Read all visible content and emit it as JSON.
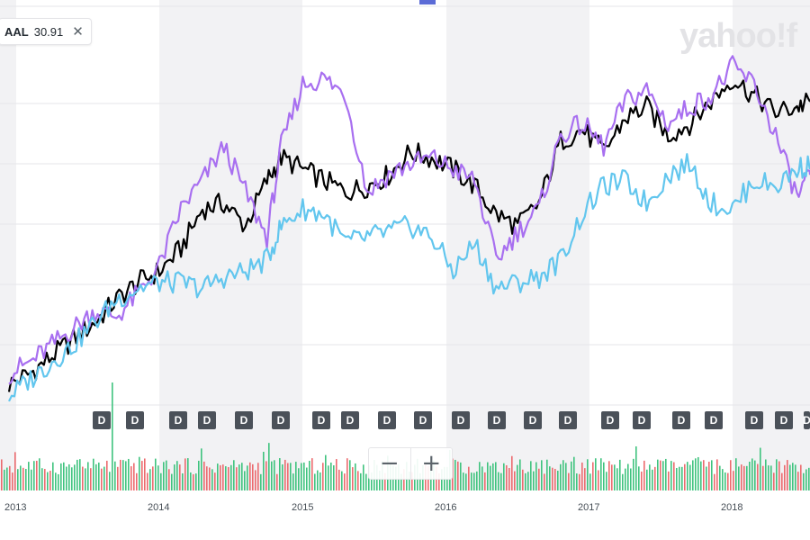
{
  "legend": {
    "symbol": "AAL",
    "value": "30.91",
    "close_icon": "close-icon"
  },
  "watermark": "yahoo!f",
  "zoom": {
    "minus_label": "−",
    "plus_label": "+"
  },
  "dividend_marker_label": "D",
  "dividend_marker_count": 20,
  "colors": {
    "main_series": "#000000",
    "comparison_purple": "#a86ff0",
    "comparison_blue": "#62c6ee",
    "volume_up": "#3fc37e",
    "volume_down": "#ec6a6e",
    "band": "#f2f2f4",
    "marker": "#4b5159"
  },
  "chart_data": {
    "type": "line",
    "x_axis_labels": [
      "2013",
      "2014",
      "2015",
      "2016",
      "2017",
      "2018"
    ],
    "grid": true,
    "series": [
      {
        "color": "#000000",
        "x": [
          2012.95,
          2013.1,
          2013.25,
          2013.4,
          2013.55,
          2013.7,
          2013.85,
          2014.0,
          2014.15,
          2014.3,
          2014.45,
          2014.6,
          2014.75,
          2014.85,
          2015.0,
          2015.15,
          2015.3,
          2015.45,
          2015.6,
          2015.75,
          2015.9,
          2016.05,
          2016.2,
          2016.35,
          2016.5,
          2016.65,
          2016.8,
          2016.95,
          2017.1,
          2017.25,
          2017.4,
          2017.55,
          2017.7,
          2017.85,
          2018.0,
          2018.15,
          2018.3,
          2018.45,
          2018.55
        ],
        "values": [
          2,
          4,
          7,
          10,
          13,
          17,
          20,
          22,
          26,
          33,
          34,
          30,
          38,
          42,
          40,
          38,
          36,
          37,
          39,
          43,
          42,
          40,
          37,
          32,
          30,
          34,
          45,
          47,
          43,
          49,
          51,
          46,
          48,
          52,
          56,
          53,
          50,
          51,
          52
        ]
      },
      {
        "color": "#a86ff0",
        "x": [
          2012.95,
          2013.1,
          2013.25,
          2013.4,
          2013.55,
          2013.7,
          2013.85,
          2014.0,
          2014.15,
          2014.3,
          2014.45,
          2014.6,
          2014.75,
          2014.85,
          2015.0,
          2015.15,
          2015.3,
          2015.45,
          2015.6,
          2015.75,
          2015.9,
          2016.05,
          2016.2,
          2016.35,
          2016.5,
          2016.65,
          2016.8,
          2016.95,
          2017.1,
          2017.25,
          2017.4,
          2017.55,
          2017.7,
          2017.85,
          2018.0,
          2018.15,
          2018.3,
          2018.45,
          2018.55
        ],
        "values": [
          4,
          6,
          9,
          12,
          15,
          14,
          18,
          23,
          33,
          38,
          44,
          36,
          28,
          44,
          55,
          56,
          53,
          36,
          39,
          41,
          42,
          40,
          38,
          24,
          29,
          33,
          46,
          48,
          44,
          52,
          54,
          48,
          51,
          53,
          58,
          55,
          46,
          35,
          39
        ]
      },
      {
        "color": "#62c6ee",
        "x": [
          2012.95,
          2013.1,
          2013.25,
          2013.4,
          2013.55,
          2013.7,
          2013.85,
          2014.0,
          2014.15,
          2014.3,
          2014.45,
          2014.6,
          2014.75,
          2014.85,
          2015.0,
          2015.15,
          2015.3,
          2015.45,
          2015.6,
          2015.75,
          2015.9,
          2016.05,
          2016.2,
          2016.35,
          2016.5,
          2016.65,
          2016.8,
          2016.95,
          2017.1,
          2017.25,
          2017.4,
          2017.55,
          2017.7,
          2017.85,
          2018.0,
          2018.15,
          2018.3,
          2018.45,
          2018.55
        ],
        "values": [
          0,
          3,
          6,
          9,
          13,
          17,
          19,
          20,
          20,
          19,
          21,
          22,
          24,
          30,
          33,
          32,
          27,
          28,
          29,
          30,
          28,
          22,
          27,
          19,
          20,
          21,
          24,
          32,
          37,
          38,
          34,
          39,
          41,
          34,
          33,
          38,
          37,
          40,
          41
        ]
      }
    ]
  }
}
